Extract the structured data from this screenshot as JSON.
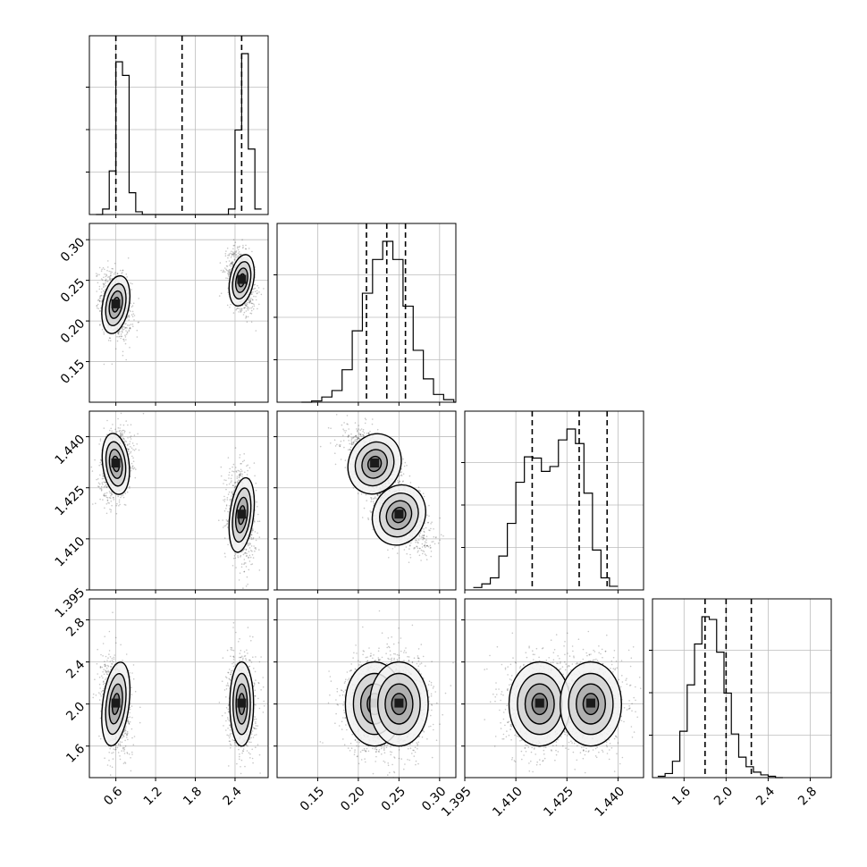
{
  "chart_data": {
    "type": "corner",
    "grid": true,
    "parameters": [
      {
        "range": [
          0.2,
          2.9
        ],
        "ticks": [
          {
            "v": 0.6,
            "t": "0.6"
          },
          {
            "v": 1.2,
            "t": "1.2"
          },
          {
            "v": 1.8,
            "t": "1.8"
          },
          {
            "v": 2.4,
            "t": "2.4"
          }
        ],
        "quantiles": [
          0.6,
          1.6,
          2.5
        ],
        "hist_edges_start": 0.3,
        "hist_bin_width": 0.1,
        "hist_counts": [
          0,
          2,
          16,
          56,
          51,
          8,
          1,
          0,
          0,
          0,
          0,
          0,
          0,
          0,
          0,
          0,
          0,
          0,
          0,
          0,
          2,
          31,
          59,
          24,
          2
        ],
        "modes": [
          {
            "cx": 0.6,
            "sx": 0.1,
            "w": 1.0
          },
          {
            "cx": 2.5,
            "sx": 0.09,
            "w": 1.0
          }
        ]
      },
      {
        "range": [
          0.1,
          0.32
        ],
        "ticks": [
          {
            "v": 0.15,
            "t": "0.15"
          },
          {
            "v": 0.2,
            "t": "0.20"
          },
          {
            "v": 0.25,
            "t": "0.25"
          },
          {
            "v": 0.3,
            "t": "0.30"
          }
        ],
        "quantiles": [
          0.21,
          0.235,
          0.258
        ],
        "hist_edges_start": 0.13,
        "hist_bin_width": 0.0125,
        "hist_counts": [
          0,
          1,
          4,
          9,
          25,
          55,
          84,
          110,
          124,
          110,
          74,
          40,
          18,
          6,
          2,
          0
        ],
        "modes": [
          {
            "cx": 0.22,
            "sx": 0.016,
            "w": 1.0
          },
          {
            "cx": 0.25,
            "sx": 0.016,
            "w": 1.0
          }
        ]
      },
      {
        "range": [
          1.395,
          1.4475
        ],
        "ticks": [
          {
            "v": 1.395,
            "t": "1.395"
          },
          {
            "v": 1.41,
            "t": "1.410"
          },
          {
            "v": 1.425,
            "t": "1.425"
          },
          {
            "v": 1.44,
            "t": "1.440"
          }
        ],
        "quantiles": [
          1.4148,
          1.4286,
          1.4368
        ],
        "hist_edges_start": 1.3975,
        "hist_bin_width": 0.0025,
        "hist_counts": [
          2,
          5,
          10,
          28,
          55,
          89,
          110,
          109,
          98,
          102,
          124,
          133,
          121,
          80,
          33,
          10,
          3
        ],
        "modes": [
          {
            "cx": 1.432,
            "sx": 0.0045,
            "w": 1.0
          },
          {
            "cx": 1.417,
            "sx": 0.0045,
            "w": 1.0
          }
        ]
      },
      {
        "range": [
          1.3,
          3.0
        ],
        "ticks": [
          {
            "v": 1.6,
            "t": "1.6"
          },
          {
            "v": 2.0,
            "t": "2.0"
          },
          {
            "v": 2.4,
            "t": "2.4"
          },
          {
            "v": 2.8,
            "t": "2.8"
          }
        ],
        "quantiles": [
          1.8,
          2.0,
          2.24
        ],
        "hist_edges_start": 1.35,
        "hist_bin_width": 0.07,
        "hist_counts": [
          1,
          3,
          12,
          34,
          68,
          98,
          118,
          116,
          92,
          62,
          32,
          15,
          8,
          4,
          2,
          1,
          0
        ],
        "modes": [
          {
            "cx": 2.0,
            "sx": 0.2,
            "w": 1.0
          }
        ]
      }
    ],
    "joint_modes": {
      "1_0": [
        {
          "x": 0.6,
          "y": 0.22,
          "sx": 0.1,
          "sy": 0.018,
          "rho": -0.3
        },
        {
          "x": 2.5,
          "y": 0.25,
          "sx": 0.09,
          "sy": 0.016,
          "rho": -0.3
        }
      ],
      "2_0": [
        {
          "x": 0.6,
          "y": 1.432,
          "sx": 0.1,
          "sy": 0.0045,
          "rho": 0.2
        },
        {
          "x": 2.5,
          "y": 1.417,
          "sx": 0.09,
          "sy": 0.0055,
          "rho": -0.2
        }
      ],
      "3_0": [
        {
          "x": 0.6,
          "y": 2.0,
          "sx": 0.1,
          "sy": 0.2,
          "rho": -0.2
        },
        {
          "x": 2.5,
          "y": 2.0,
          "sx": 0.09,
          "sy": 0.2,
          "rho": 0.0
        }
      ],
      "2_1": [
        {
          "x": 0.22,
          "y": 1.432,
          "sx": 0.016,
          "sy": 0.0045,
          "rho": -0.6
        },
        {
          "x": 0.25,
          "y": 1.417,
          "sx": 0.016,
          "sy": 0.0045,
          "rho": -0.6
        }
      ],
      "3_1": [
        {
          "x": 0.22,
          "y": 2.0,
          "sx": 0.018,
          "sy": 0.2,
          "rho": 0.0
        },
        {
          "x": 0.25,
          "y": 2.0,
          "sx": 0.018,
          "sy": 0.2,
          "rho": 0.0
        }
      ],
      "3_2": [
        {
          "x": 1.417,
          "y": 2.0,
          "sx": 0.0045,
          "sy": 0.2,
          "rho": 0.0
        },
        {
          "x": 1.432,
          "y": 2.0,
          "sx": 0.0045,
          "sy": 0.2,
          "rho": 0.0
        }
      ]
    }
  }
}
